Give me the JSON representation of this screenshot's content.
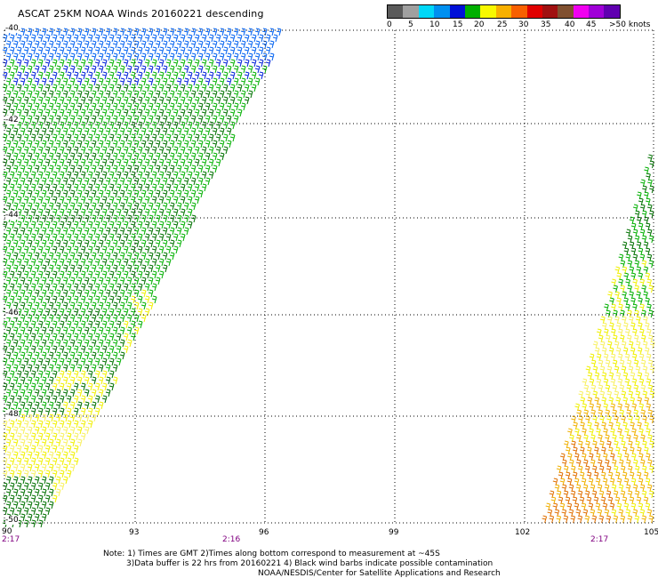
{
  "title": "ASCAT 25KM NOAA Winds 20160221 descending",
  "legend": {
    "colors": [
      "#5a5a5a",
      "#a0a0a0",
      "#00d8f8",
      "#0090f0",
      "#0010d8",
      "#00b000",
      "#f8f800",
      "#f8b000",
      "#f86000",
      "#e00000",
      "#a01010",
      "#805030",
      "#f000f0",
      "#a000d8",
      "#6000b0"
    ],
    "labels": [
      "0",
      "5",
      "10",
      "15",
      "20",
      "25",
      "30",
      "35",
      "40",
      "45",
      ">50 knots"
    ]
  },
  "map": {
    "lon_labels": [
      "93",
      "96",
      "99",
      "102",
      "105"
    ],
    "lat_labels": [
      "-42",
      "-44",
      "-46",
      "-48",
      "-50"
    ],
    "corner_labels": [
      "-40",
      "90"
    ],
    "time_labels": [
      "2:17",
      "2:16",
      "2:17"
    ],
    "speed_colors": {
      "blue": "#0020d8",
      "light_blue": "#0060f0",
      "green": "#00b000",
      "dark_green": "#007000",
      "yellow": "#f0f000",
      "light_yellow": "#f8f060",
      "orange": "#f0b000",
      "dark_orange": "#e07000"
    }
  },
  "notes": {
    "line1": "Note: 1) Times are GMT 2)Times along bottom correspond to measurement at ~45S",
    "line2": "3)Data buffer is 22 hrs from 20160221 4) Black wind barbs indicate possible contamination",
    "line3": "NOAA/NESDIS/Center for Satellite Applications and Research"
  }
}
